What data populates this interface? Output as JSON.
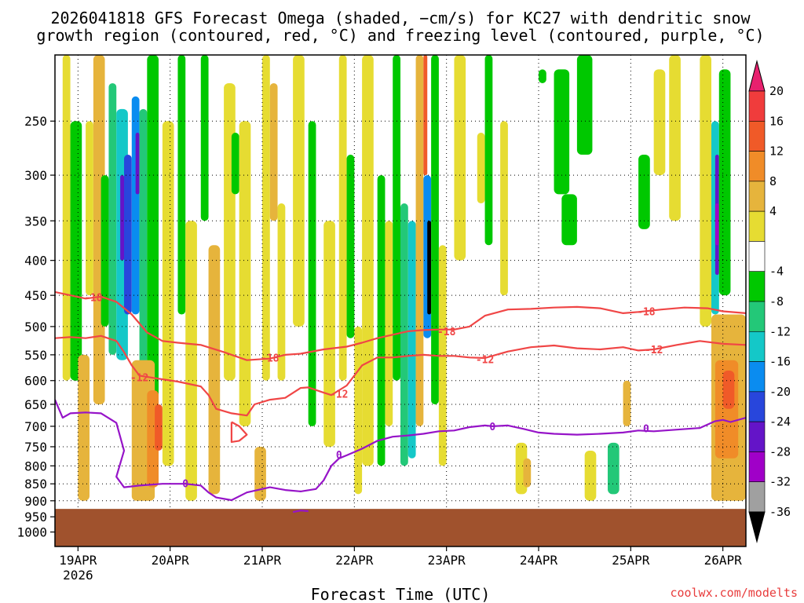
{
  "chart_data": {
    "type": "heatmap",
    "title_line1": "2026041818 GFS Forecast Omega (shaded, −cm/s) for KC27 with dendritic snow",
    "title_line2": "growth region (contoured, red, °C) and freezing level (contoured, purple, °C)",
    "xlabel": "Forecast Time (UTC)",
    "ylabel": "",
    "x_ticks": [
      {
        "label": "19APR",
        "sub": "2026",
        "hour": 6
      },
      {
        "label": "20APR",
        "sub": "",
        "hour": 30
      },
      {
        "label": "21APR",
        "sub": "",
        "hour": 54
      },
      {
        "label": "22APR",
        "sub": "",
        "hour": 78
      },
      {
        "label": "23APR",
        "sub": "",
        "hour": 102
      },
      {
        "label": "24APR",
        "sub": "",
        "hour": 126
      },
      {
        "label": "25APR",
        "sub": "",
        "hour": 150
      },
      {
        "label": "26APR",
        "sub": "",
        "hour": 174
      }
    ],
    "xlim": [
      0,
      180
    ],
    "y_ticks": [
      250,
      300,
      350,
      400,
      450,
      500,
      550,
      600,
      650,
      700,
      750,
      800,
      850,
      900,
      950,
      1000
    ],
    "ylim": [
      200,
      1050
    ],
    "y_scale": "log",
    "colorbar": {
      "labels": [
        "20",
        "16",
        "12",
        "8",
        "4",
        "-4",
        "-8",
        "-12",
        "-16",
        "-20",
        "-24",
        "-28",
        "-32",
        "-36"
      ],
      "levels": [
        20,
        16,
        12,
        8,
        4,
        -4,
        -8,
        -12,
        -16,
        -20,
        -24,
        -28,
        -32,
        -36
      ],
      "colors": [
        "#e8206e",
        "#f03c3c",
        "#f05a28",
        "#f08c28",
        "#e6b43c",
        "#e6dc32",
        "#ffffff",
        "#00c800",
        "#23c878",
        "#14c8c8",
        "#0a8cf0",
        "#2846dc",
        "#6414c8",
        "#a000c8",
        "#a0a0a0",
        "#000000"
      ]
    },
    "ground_pressure": 925,
    "ground_color": "#a0522d",
    "contour_colors": {
      "dgz": "#f04646",
      "freezing": "#9614c8"
    },
    "contours": [
      {
        "name": "dgz-top-minus18",
        "label": "-18",
        "labels": [
          {
            "hour": 10,
            "p": 453
          },
          {
            "hour": 56,
            "p": 555
          },
          {
            "hour": 102,
            "p": 508
          },
          {
            "hour": 154,
            "p": 475
          }
        ],
        "points": [
          [
            0,
            445
          ],
          [
            4,
            450
          ],
          [
            8,
            455
          ],
          [
            12,
            452
          ],
          [
            16,
            460
          ],
          [
            20,
            480
          ],
          [
            24,
            510
          ],
          [
            28,
            525
          ],
          [
            32,
            528
          ],
          [
            38,
            532
          ],
          [
            44,
            545
          ],
          [
            50,
            560
          ],
          [
            56,
            557
          ],
          [
            60,
            550
          ],
          [
            64,
            548
          ],
          [
            70,
            540
          ],
          [
            76,
            535
          ],
          [
            80,
            528
          ],
          [
            84,
            520
          ],
          [
            88,
            514
          ],
          [
            92,
            508
          ],
          [
            96,
            506
          ],
          [
            100,
            505
          ],
          [
            104,
            505
          ],
          [
            108,
            500
          ],
          [
            112,
            482
          ],
          [
            118,
            472
          ],
          [
            124,
            471
          ],
          [
            130,
            469
          ],
          [
            136,
            468
          ],
          [
            142,
            470
          ],
          [
            148,
            478
          ],
          [
            152,
            476
          ],
          [
            158,
            472
          ],
          [
            164,
            469
          ],
          [
            170,
            470
          ],
          [
            174,
            475
          ],
          [
            180,
            478
          ]
        ]
      },
      {
        "name": "dgz-bottom-minus12",
        "label": "-12",
        "labels": [
          {
            "hour": 22,
            "p": 593
          },
          {
            "hour": 74,
            "p": 627
          },
          {
            "hour": 112,
            "p": 558
          },
          {
            "hour": 156,
            "p": 540
          }
        ],
        "points": [
          [
            0,
            520
          ],
          [
            4,
            518
          ],
          [
            8,
            520
          ],
          [
            12,
            516
          ],
          [
            16,
            525
          ],
          [
            18,
            545
          ],
          [
            20,
            570
          ],
          [
            22,
            590
          ],
          [
            26,
            595
          ],
          [
            32,
            602
          ],
          [
            38,
            612
          ],
          [
            40,
            630
          ],
          [
            42,
            660
          ],
          [
            46,
            670
          ],
          [
            50,
            675
          ],
          [
            52,
            650
          ],
          [
            56,
            640
          ],
          [
            60,
            636
          ],
          [
            64,
            615
          ],
          [
            66,
            614
          ],
          [
            70,
            625
          ],
          [
            72,
            630
          ],
          [
            76,
            610
          ],
          [
            80,
            570
          ],
          [
            84,
            555
          ],
          [
            88,
            555
          ],
          [
            92,
            552
          ],
          [
            96,
            550
          ],
          [
            100,
            552
          ],
          [
            104,
            552
          ],
          [
            108,
            555
          ],
          [
            112,
            556
          ],
          [
            118,
            544
          ],
          [
            124,
            536
          ],
          [
            130,
            533
          ],
          [
            136,
            538
          ],
          [
            142,
            540
          ],
          [
            148,
            536
          ],
          [
            152,
            542
          ],
          [
            156,
            540
          ],
          [
            162,
            532
          ],
          [
            168,
            525
          ],
          [
            174,
            530
          ],
          [
            180,
            532
          ]
        ]
      },
      {
        "name": "dgz-small-loop",
        "label": "",
        "labels": [],
        "points": [
          [
            46,
            690
          ],
          [
            48,
            700
          ],
          [
            50,
            720
          ],
          [
            48,
            735
          ],
          [
            46,
            738
          ],
          [
            46,
            720
          ],
          [
            46,
            700
          ],
          [
            46,
            690
          ]
        ]
      },
      {
        "name": "freezing-level-0c",
        "label": "0",
        "labels": [
          {
            "hour": 34,
            "p": 848
          },
          {
            "hour": 74,
            "p": 770
          },
          {
            "hour": 114,
            "p": 700
          },
          {
            "hour": 154,
            "p": 705
          }
        ],
        "points": [
          [
            0,
            640
          ],
          [
            2,
            680
          ],
          [
            4,
            670
          ],
          [
            8,
            668
          ],
          [
            12,
            670
          ],
          [
            16,
            692
          ],
          [
            18,
            760
          ],
          [
            16,
            830
          ],
          [
            18,
            860
          ],
          [
            22,
            855
          ],
          [
            28,
            850
          ],
          [
            34,
            850
          ],
          [
            38,
            855
          ],
          [
            40,
            875
          ],
          [
            42,
            890
          ],
          [
            46,
            898
          ],
          [
            50,
            875
          ],
          [
            56,
            860
          ],
          [
            60,
            868
          ],
          [
            64,
            872
          ],
          [
            68,
            865
          ],
          [
            70,
            840
          ],
          [
            72,
            800
          ],
          [
            74,
            780
          ],
          [
            76,
            772
          ],
          [
            80,
            755
          ],
          [
            84,
            735
          ],
          [
            88,
            725
          ],
          [
            92,
            722
          ],
          [
            96,
            718
          ],
          [
            100,
            712
          ],
          [
            104,
            710
          ],
          [
            108,
            702
          ],
          [
            112,
            698
          ],
          [
            114,
            700
          ],
          [
            118,
            698
          ],
          [
            122,
            706
          ],
          [
            126,
            715
          ],
          [
            130,
            718
          ],
          [
            136,
            720
          ],
          [
            142,
            718
          ],
          [
            148,
            715
          ],
          [
            152,
            710
          ],
          [
            156,
            712
          ],
          [
            162,
            708
          ],
          [
            168,
            704
          ],
          [
            172,
            688
          ],
          [
            174,
            685
          ],
          [
            176,
            690
          ],
          [
            180,
            680
          ]
        ]
      },
      {
        "name": "freezing-bottom-trace",
        "label": "",
        "labels": [],
        "points": [
          [
            62,
            935
          ],
          [
            64,
            930
          ],
          [
            66,
            932
          ]
        ]
      }
    ],
    "shaded_regions": [
      {
        "h0": 2,
        "h1": 4,
        "p0": 200,
        "p1": 600,
        "level": 4
      },
      {
        "h0": 4,
        "h1": 7,
        "p0": 250,
        "p1": 600,
        "level": -8
      },
      {
        "h0": 6,
        "h1": 9,
        "p0": 550,
        "p1": 900,
        "level": 8
      },
      {
        "h0": 8,
        "h1": 10,
        "p0": 250,
        "p1": 450,
        "level": 4
      },
      {
        "h0": 10,
        "h1": 13,
        "p0": 200,
        "p1": 650,
        "level": 8
      },
      {
        "h0": 12,
        "h1": 14,
        "p0": 300,
        "p1": 500,
        "level": -8
      },
      {
        "h0": 14,
        "h1": 16,
        "p0": 220,
        "p1": 550,
        "level": -12
      },
      {
        "h0": 16,
        "h1": 19,
        "p0": 240,
        "p1": 560,
        "level": -16
      },
      {
        "h0": 17,
        "h1": 18,
        "p0": 300,
        "p1": 400,
        "level": -28
      },
      {
        "h0": 18,
        "h1": 20,
        "p0": 280,
        "p1": 480,
        "level": -24
      },
      {
        "h0": 20,
        "h1": 22,
        "p0": 230,
        "p1": 480,
        "level": -20
      },
      {
        "h0": 21,
        "h1": 22,
        "p0": 260,
        "p1": 320,
        "level": -28
      },
      {
        "h0": 22,
        "h1": 24,
        "p0": 240,
        "p1": 600,
        "level": -12
      },
      {
        "h0": 24,
        "h1": 27,
        "p0": 200,
        "p1": 700,
        "level": -8
      },
      {
        "h0": 20,
        "h1": 26,
        "p0": 560,
        "p1": 900,
        "level": 8
      },
      {
        "h0": 24,
        "h1": 27,
        "p0": 620,
        "p1": 860,
        "level": 12
      },
      {
        "h0": 26,
        "h1": 28,
        "p0": 650,
        "p1": 760,
        "level": 16
      },
      {
        "h0": 28,
        "h1": 31,
        "p0": 250,
        "p1": 800,
        "level": 4
      },
      {
        "h0": 32,
        "h1": 34,
        "p0": 200,
        "p1": 480,
        "level": -8
      },
      {
        "h0": 34,
        "h1": 37,
        "p0": 350,
        "p1": 900,
        "level": 4
      },
      {
        "h0": 38,
        "h1": 40,
        "p0": 200,
        "p1": 350,
        "level": -8
      },
      {
        "h0": 40,
        "h1": 43,
        "p0": 380,
        "p1": 880,
        "level": 8
      },
      {
        "h0": 44,
        "h1": 47,
        "p0": 220,
        "p1": 600,
        "level": 4
      },
      {
        "h0": 46,
        "h1": 48,
        "p0": 260,
        "p1": 320,
        "level": -8
      },
      {
        "h0": 48,
        "h1": 51,
        "p0": 250,
        "p1": 700,
        "level": 4
      },
      {
        "h0": 52,
        "h1": 55,
        "p0": 750,
        "p1": 900,
        "level": 8
      },
      {
        "h0": 54,
        "h1": 56,
        "p0": 200,
        "p1": 600,
        "level": 4
      },
      {
        "h0": 56,
        "h1": 58,
        "p0": 220,
        "p1": 350,
        "level": 8
      },
      {
        "h0": 58,
        "h1": 60,
        "p0": 330,
        "p1": 600,
        "level": 4
      },
      {
        "h0": 62,
        "h1": 65,
        "p0": 200,
        "p1": 500,
        "level": 4
      },
      {
        "h0": 66,
        "h1": 68,
        "p0": 250,
        "p1": 700,
        "level": -8
      },
      {
        "h0": 70,
        "h1": 73,
        "p0": 350,
        "p1": 750,
        "level": 4
      },
      {
        "h0": 74,
        "h1": 76,
        "p0": 200,
        "p1": 600,
        "level": 4
      },
      {
        "h0": 76,
        "h1": 78,
        "p0": 280,
        "p1": 520,
        "level": -8
      },
      {
        "h0": 78,
        "h1": 80,
        "p0": 500,
        "p1": 880,
        "level": 4
      },
      {
        "h0": 80,
        "h1": 83,
        "p0": 200,
        "p1": 800,
        "level": 4
      },
      {
        "h0": 84,
        "h1": 86,
        "p0": 300,
        "p1": 800,
        "level": -8
      },
      {
        "h0": 86,
        "h1": 88,
        "p0": 350,
        "p1": 700,
        "level": 4
      },
      {
        "h0": 88,
        "h1": 90,
        "p0": 200,
        "p1": 600,
        "level": -8
      },
      {
        "h0": 90,
        "h1": 92,
        "p0": 330,
        "p1": 800,
        "level": -12
      },
      {
        "h0": 92,
        "h1": 94,
        "p0": 350,
        "p1": 780,
        "level": -16
      },
      {
        "h0": 94,
        "h1": 96,
        "p0": 200,
        "p1": 700,
        "level": 8
      },
      {
        "h0": 96,
        "h1": 97,
        "p0": 200,
        "p1": 300,
        "level": 16
      },
      {
        "h0": 96,
        "h1": 98,
        "p0": 300,
        "p1": 520,
        "level": -20
      },
      {
        "h0": 97,
        "h1": 98,
        "p0": 350,
        "p1": 480,
        "level": -36
      },
      {
        "h0": 98,
        "h1": 100,
        "p0": 200,
        "p1": 650,
        "level": -8
      },
      {
        "h0": 100,
        "h1": 102,
        "p0": 380,
        "p1": 800,
        "level": 4
      },
      {
        "h0": 104,
        "h1": 107,
        "p0": 200,
        "p1": 400,
        "level": 4
      },
      {
        "h0": 110,
        "h1": 112,
        "p0": 260,
        "p1": 330,
        "level": 4
      },
      {
        "h0": 112,
        "h1": 114,
        "p0": 200,
        "p1": 380,
        "level": -8
      },
      {
        "h0": 116,
        "h1": 118,
        "p0": 250,
        "p1": 450,
        "level": 4
      },
      {
        "h0": 120,
        "h1": 123,
        "p0": 740,
        "p1": 880,
        "level": 4
      },
      {
        "h0": 122,
        "h1": 124,
        "p0": 780,
        "p1": 860,
        "level": 8
      },
      {
        "h0": 126,
        "h1": 128,
        "p0": 210,
        "p1": 220,
        "level": -8
      },
      {
        "h0": 130,
        "h1": 134,
        "p0": 210,
        "p1": 320,
        "level": -8
      },
      {
        "h0": 132,
        "h1": 136,
        "p0": 320,
        "p1": 380,
        "level": -8
      },
      {
        "h0": 136,
        "h1": 140,
        "p0": 200,
        "p1": 280,
        "level": -8
      },
      {
        "h0": 138,
        "h1": 141,
        "p0": 760,
        "p1": 900,
        "level": 4
      },
      {
        "h0": 144,
        "h1": 147,
        "p0": 740,
        "p1": 880,
        "level": -12
      },
      {
        "h0": 148,
        "h1": 150,
        "p0": 600,
        "p1": 700,
        "level": 8
      },
      {
        "h0": 152,
        "h1": 155,
        "p0": 280,
        "p1": 360,
        "level": -8
      },
      {
        "h0": 156,
        "h1": 159,
        "p0": 210,
        "p1": 300,
        "level": 4
      },
      {
        "h0": 160,
        "h1": 163,
        "p0": 200,
        "p1": 350,
        "level": 4
      },
      {
        "h0": 168,
        "h1": 171,
        "p0": 200,
        "p1": 500,
        "level": 4
      },
      {
        "h0": 171,
        "h1": 173,
        "p0": 250,
        "p1": 480,
        "level": -16
      },
      {
        "h0": 172,
        "h1": 173,
        "p0": 280,
        "p1": 420,
        "level": -28
      },
      {
        "h0": 172,
        "h1": 173,
        "p0": 330,
        "p1": 380,
        "level": -32
      },
      {
        "h0": 173,
        "h1": 176,
        "p0": 210,
        "p1": 450,
        "level": -8
      },
      {
        "h0": 171,
        "h1": 180,
        "p0": 480,
        "p1": 900,
        "level": 8
      },
      {
        "h0": 172,
        "h1": 178,
        "p0": 560,
        "p1": 780,
        "level": 12
      },
      {
        "h0": 174,
        "h1": 177,
        "p0": 580,
        "p1": 660,
        "level": 16
      }
    ]
  },
  "footer": {
    "credit": "coolwx.com/modelts"
  }
}
